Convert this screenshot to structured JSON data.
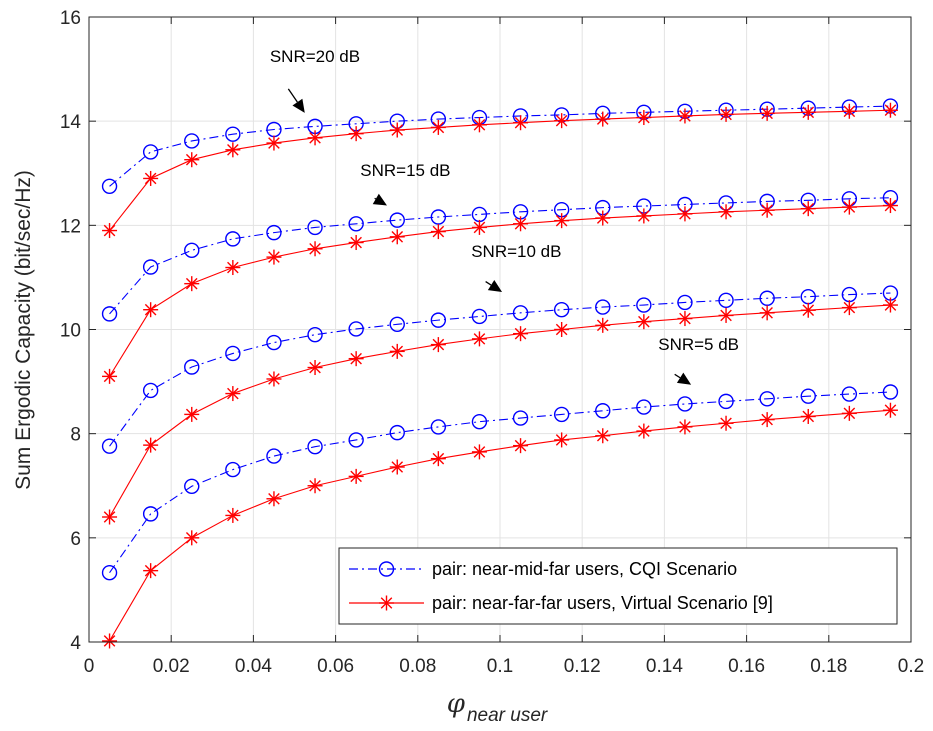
{
  "chart_data": {
    "type": "line",
    "title": "",
    "xlabel": "φ",
    "xlabel_subscript": "near user",
    "ylabel": "Sum Ergodic Capacity (bit/sec/Hz)",
    "xlim": [
      0,
      0.2
    ],
    "ylim": [
      4,
      16
    ],
    "xticks": [
      0,
      0.02,
      0.04,
      0.06,
      0.08,
      0.1,
      0.12,
      0.14,
      0.16,
      0.18,
      0.2
    ],
    "xtick_labels": [
      "0",
      "0.02",
      "0.04",
      "0.06",
      "0.08",
      "0.1",
      "0.12",
      "0.14",
      "0.16",
      "0.18",
      "0.2"
    ],
    "yticks": [
      4,
      6,
      8,
      10,
      12,
      14,
      16
    ],
    "ytick_labels": [
      "4",
      "6",
      "8",
      "10",
      "12",
      "14",
      "16"
    ],
    "grid": true,
    "legend_position": "bottom-right",
    "x": [
      0.005,
      0.015,
      0.025,
      0.035,
      0.045,
      0.055,
      0.065,
      0.075,
      0.085,
      0.095,
      0.105,
      0.115,
      0.125,
      0.135,
      0.145,
      0.155,
      0.165,
      0.175,
      0.185,
      0.195
    ],
    "series": [
      {
        "name": "pair: near-mid-far users, CQI Scenario",
        "color": "#0000ff",
        "marker": "circle",
        "line_style": "dash-dot",
        "group": "SNR=20 dB",
        "values": [
          12.75,
          13.41,
          13.62,
          13.75,
          13.84,
          13.9,
          13.95,
          14.0,
          14.04,
          14.07,
          14.1,
          14.12,
          14.15,
          14.17,
          14.19,
          14.21,
          14.23,
          14.25,
          14.27,
          14.29
        ]
      },
      {
        "name": "pair: near-far-far users, Virtual Scenario [9]",
        "color": "#ff0000",
        "marker": "asterisk",
        "line_style": "solid",
        "group": "SNR=20 dB",
        "values": [
          11.9,
          12.9,
          13.26,
          13.45,
          13.58,
          13.68,
          13.76,
          13.83,
          13.88,
          13.93,
          13.97,
          14.01,
          14.04,
          14.07,
          14.1,
          14.13,
          14.15,
          14.17,
          14.19,
          14.21
        ]
      },
      {
        "name": "pair: near-mid-far users, CQI Scenario",
        "color": "#0000ff",
        "marker": "circle",
        "line_style": "dash-dot",
        "group": "SNR=15 dB",
        "values": [
          10.3,
          11.2,
          11.52,
          11.74,
          11.86,
          11.96,
          12.03,
          12.1,
          12.16,
          12.21,
          12.26,
          12.3,
          12.34,
          12.37,
          12.4,
          12.43,
          12.46,
          12.48,
          12.51,
          12.53
        ]
      },
      {
        "name": "pair: near-far-far users, Virtual Scenario [9]",
        "color": "#ff0000",
        "marker": "asterisk",
        "line_style": "solid",
        "group": "SNR=15 dB",
        "values": [
          9.1,
          10.38,
          10.88,
          11.19,
          11.39,
          11.55,
          11.67,
          11.78,
          11.88,
          11.96,
          12.03,
          12.09,
          12.14,
          12.18,
          12.22,
          12.26,
          12.29,
          12.32,
          12.35,
          12.38
        ]
      },
      {
        "name": "pair: near-mid-far users, CQI Scenario",
        "color": "#0000ff",
        "marker": "circle",
        "line_style": "dash-dot",
        "group": "SNR=10 dB",
        "values": [
          7.76,
          8.83,
          9.28,
          9.54,
          9.75,
          9.9,
          10.01,
          10.1,
          10.18,
          10.25,
          10.32,
          10.38,
          10.43,
          10.47,
          10.52,
          10.56,
          10.6,
          10.63,
          10.67,
          10.7
        ]
      },
      {
        "name": "pair: near-far-far users, Virtual Scenario [9]",
        "color": "#ff0000",
        "marker": "asterisk",
        "line_style": "solid",
        "group": "SNR=10 dB",
        "values": [
          6.4,
          7.78,
          8.37,
          8.77,
          9.05,
          9.27,
          9.44,
          9.58,
          9.71,
          9.82,
          9.92,
          10.0,
          10.08,
          10.15,
          10.21,
          10.27,
          10.32,
          10.37,
          10.42,
          10.47
        ]
      },
      {
        "name": "pair: near-mid-far users, CQI Scenario",
        "color": "#0000ff",
        "marker": "circle",
        "line_style": "dash-dot",
        "group": "SNR=5 dB",
        "values": [
          5.33,
          6.46,
          6.99,
          7.31,
          7.57,
          7.75,
          7.88,
          8.02,
          8.13,
          8.23,
          8.3,
          8.37,
          8.44,
          8.51,
          8.57,
          8.62,
          8.67,
          8.72,
          8.76,
          8.8
        ]
      },
      {
        "name": "pair: near-far-far users, Virtual Scenario [9]",
        "color": "#ff0000",
        "marker": "asterisk",
        "line_style": "solid",
        "group": "SNR=5 dB",
        "values": [
          4.02,
          5.37,
          6.0,
          6.43,
          6.75,
          7.0,
          7.18,
          7.36,
          7.52,
          7.65,
          7.77,
          7.88,
          7.96,
          8.05,
          8.13,
          8.2,
          8.27,
          8.33,
          8.39,
          8.45
        ]
      }
    ],
    "legend": [
      {
        "label": "pair: near-mid-far users, CQI Scenario",
        "color": "#0000ff",
        "marker": "circle",
        "line_style": "dash-dot"
      },
      {
        "label": "pair: near-far-far users, Virtual Scenario [9]",
        "color": "#ff0000",
        "marker": "asterisk",
        "line_style": "solid"
      }
    ],
    "annotations": [
      {
        "text": "SNR=20 dB",
        "x": 0.044,
        "y": 15.14,
        "arrow_from": [
          0.0485,
          14.62
        ],
        "arrow_to": [
          0.0525,
          14.16
        ]
      },
      {
        "text": "SNR=15 dB",
        "x": 0.066,
        "y": 12.95,
        "arrow_from": [
          0.0695,
          12.52
        ],
        "arrow_to": [
          0.0725,
          12.38
        ]
      },
      {
        "text": "SNR=10 dB",
        "x": 0.093,
        "y": 11.39,
        "arrow_from": [
          0.0965,
          10.92
        ],
        "arrow_to": [
          0.1005,
          10.72
        ]
      },
      {
        "text": "SNR=5 dB",
        "x": 0.1385,
        "y": 9.61,
        "arrow_from": [
          0.1425,
          9.14
        ],
        "arrow_to": [
          0.1465,
          8.94
        ]
      }
    ]
  }
}
